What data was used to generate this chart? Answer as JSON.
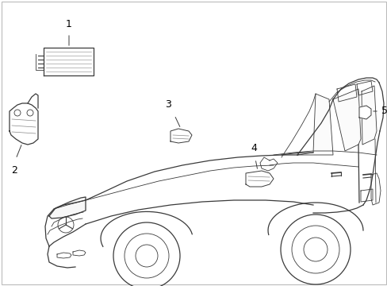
{
  "background_color": "#ffffff",
  "line_color": "#3a3a3a",
  "label_color": "#000000",
  "fig_width": 4.89,
  "fig_height": 3.6,
  "dpi": 100,
  "border_color": "#bbbbbb",
  "image_data": ""
}
